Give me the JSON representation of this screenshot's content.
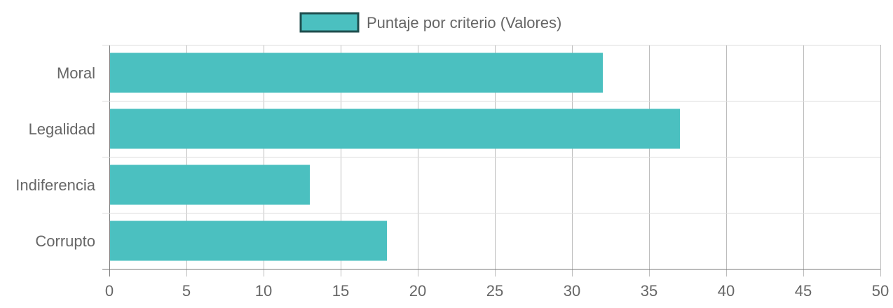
{
  "chart_data": {
    "type": "bar",
    "orientation": "horizontal",
    "categories": [
      "Moral",
      "Legalidad",
      "Indiferencia",
      "Corrupto"
    ],
    "series": [
      {
        "name": "Puntaje por criterio (Valores)",
        "values": [
          32,
          37,
          13,
          18
        ],
        "color": "#4BC0C0",
        "border_color": "#1F4E4E"
      }
    ],
    "x_ticks": [
      "0",
      "5",
      "10",
      "15",
      "20",
      "25",
      "30",
      "35",
      "40",
      "45",
      "50"
    ],
    "xlim": [
      0,
      50
    ],
    "grid": true,
    "legend_position": "top-center"
  }
}
